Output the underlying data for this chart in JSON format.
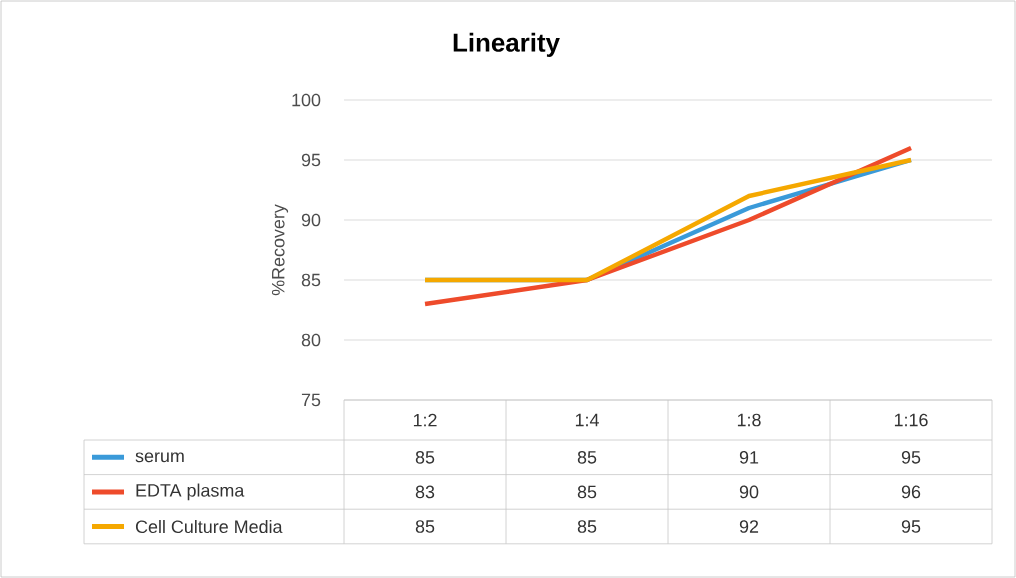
{
  "chart_data": {
    "type": "line",
    "title": "Linearity",
    "ylabel": "%Recovery",
    "categories": [
      "1:2",
      "1:4",
      "1:8",
      "1:16"
    ],
    "series": [
      {
        "name": "serum",
        "color": "#3a9ad9",
        "values": [
          85,
          85,
          91,
          95
        ]
      },
      {
        "name": "EDTA plasma",
        "color": "#ee4b2b",
        "values": [
          83,
          85,
          90,
          96
        ]
      },
      {
        "name": "Cell Culture Media",
        "color": "#f5a800",
        "values": [
          85,
          85,
          92,
          95
        ]
      }
    ],
    "ylim": [
      75,
      100
    ],
    "yticks": [
      75,
      80,
      85,
      90,
      95,
      100
    ],
    "grid": "y",
    "legend": "bottom",
    "data_labels": true,
    "marker": "none",
    "line_style": "solid"
  }
}
